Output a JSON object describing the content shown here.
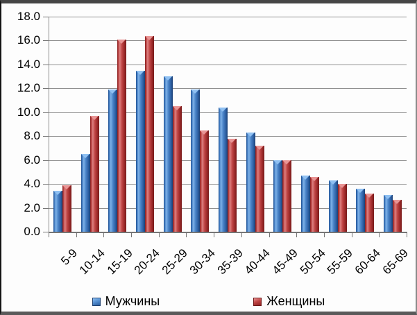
{
  "chart_data": {
    "type": "bar",
    "title": "",
    "categories": [
      "5-9",
      "10-14",
      "15-19",
      "20-24",
      "25-29",
      "30-34",
      "35-39",
      "40-44",
      "45-49",
      "50-54",
      "55-59",
      "60-64",
      "65-69"
    ],
    "series": [
      {
        "name": "Мужчины",
        "color": "#3a74ba",
        "values": [
          3.4,
          6.5,
          11.9,
          13.5,
          13.0,
          11.9,
          10.4,
          8.3,
          6.0,
          4.7,
          4.3,
          3.6,
          3.1
        ]
      },
      {
        "name": "Женщины",
        "color": "#b03838",
        "values": [
          3.9,
          9.7,
          16.1,
          16.4,
          10.5,
          8.5,
          7.8,
          7.2,
          6.0,
          4.6,
          4.0,
          3.2,
          2.7
        ]
      }
    ],
    "xlabel": "",
    "ylabel": "",
    "ylim": [
      0,
      18
    ],
    "ytick_step": 2,
    "grid": true,
    "legend_position": "bottom",
    "bar_style": "3d-beveled"
  },
  "axes": {
    "y_ticks": [
      "0.0",
      "2.0",
      "4.0",
      "6.0",
      "8.0",
      "10.0",
      "12.0",
      "14.0",
      "16.0",
      "18.0"
    ]
  },
  "legend": {
    "items": [
      {
        "label": "Мужчины",
        "color": "#3a74ba"
      },
      {
        "label": "Женщины",
        "color": "#b03838"
      }
    ]
  },
  "colors": {
    "men": "#3a74ba",
    "women": "#b03838",
    "gridline": "#8f8f8f",
    "axis": "#757575",
    "text": "#000000",
    "background": "#fdfdfd"
  }
}
